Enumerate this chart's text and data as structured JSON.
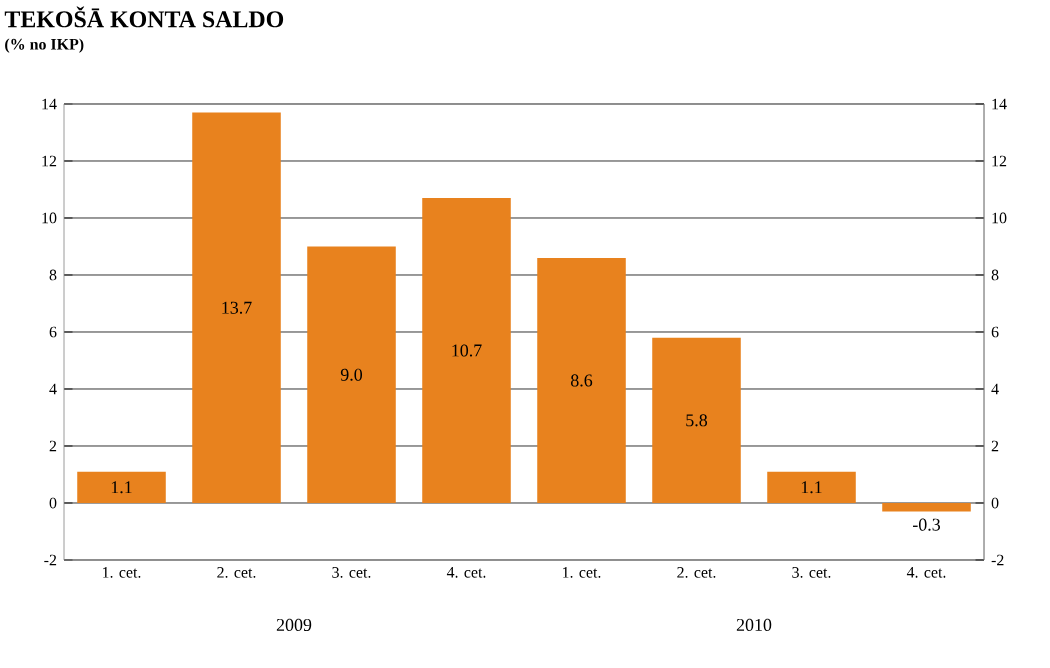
{
  "chart_data": {
    "type": "bar",
    "title": "TEKOŠĀ KONTA SALDO",
    "subtitle": "(% no IKP)",
    "categories": [
      "1. cet.",
      "2. cet.",
      "3. cet.",
      "4. cet.",
      "1. cet.",
      "2. cet.",
      "3. cet.",
      "4. cet."
    ],
    "values": [
      1.1,
      13.7,
      9.0,
      10.7,
      8.6,
      5.8,
      1.1,
      -0.3
    ],
    "value_labels": [
      "1.1",
      "13.7",
      "9.0",
      "10.7",
      "8.6",
      "5.8",
      "1.1",
      "-0.3"
    ],
    "color": "#e8821e",
    "ylim": [
      -2,
      14
    ],
    "yticks": [
      -2,
      0,
      2,
      4,
      6,
      8,
      10,
      12,
      14
    ],
    "y2lim": [
      -2,
      14
    ],
    "y2ticks": [
      -2,
      0,
      2,
      4,
      6,
      8,
      10,
      12,
      14
    ],
    "grid": "y",
    "annotations": [
      "2009",
      "2010"
    ]
  }
}
